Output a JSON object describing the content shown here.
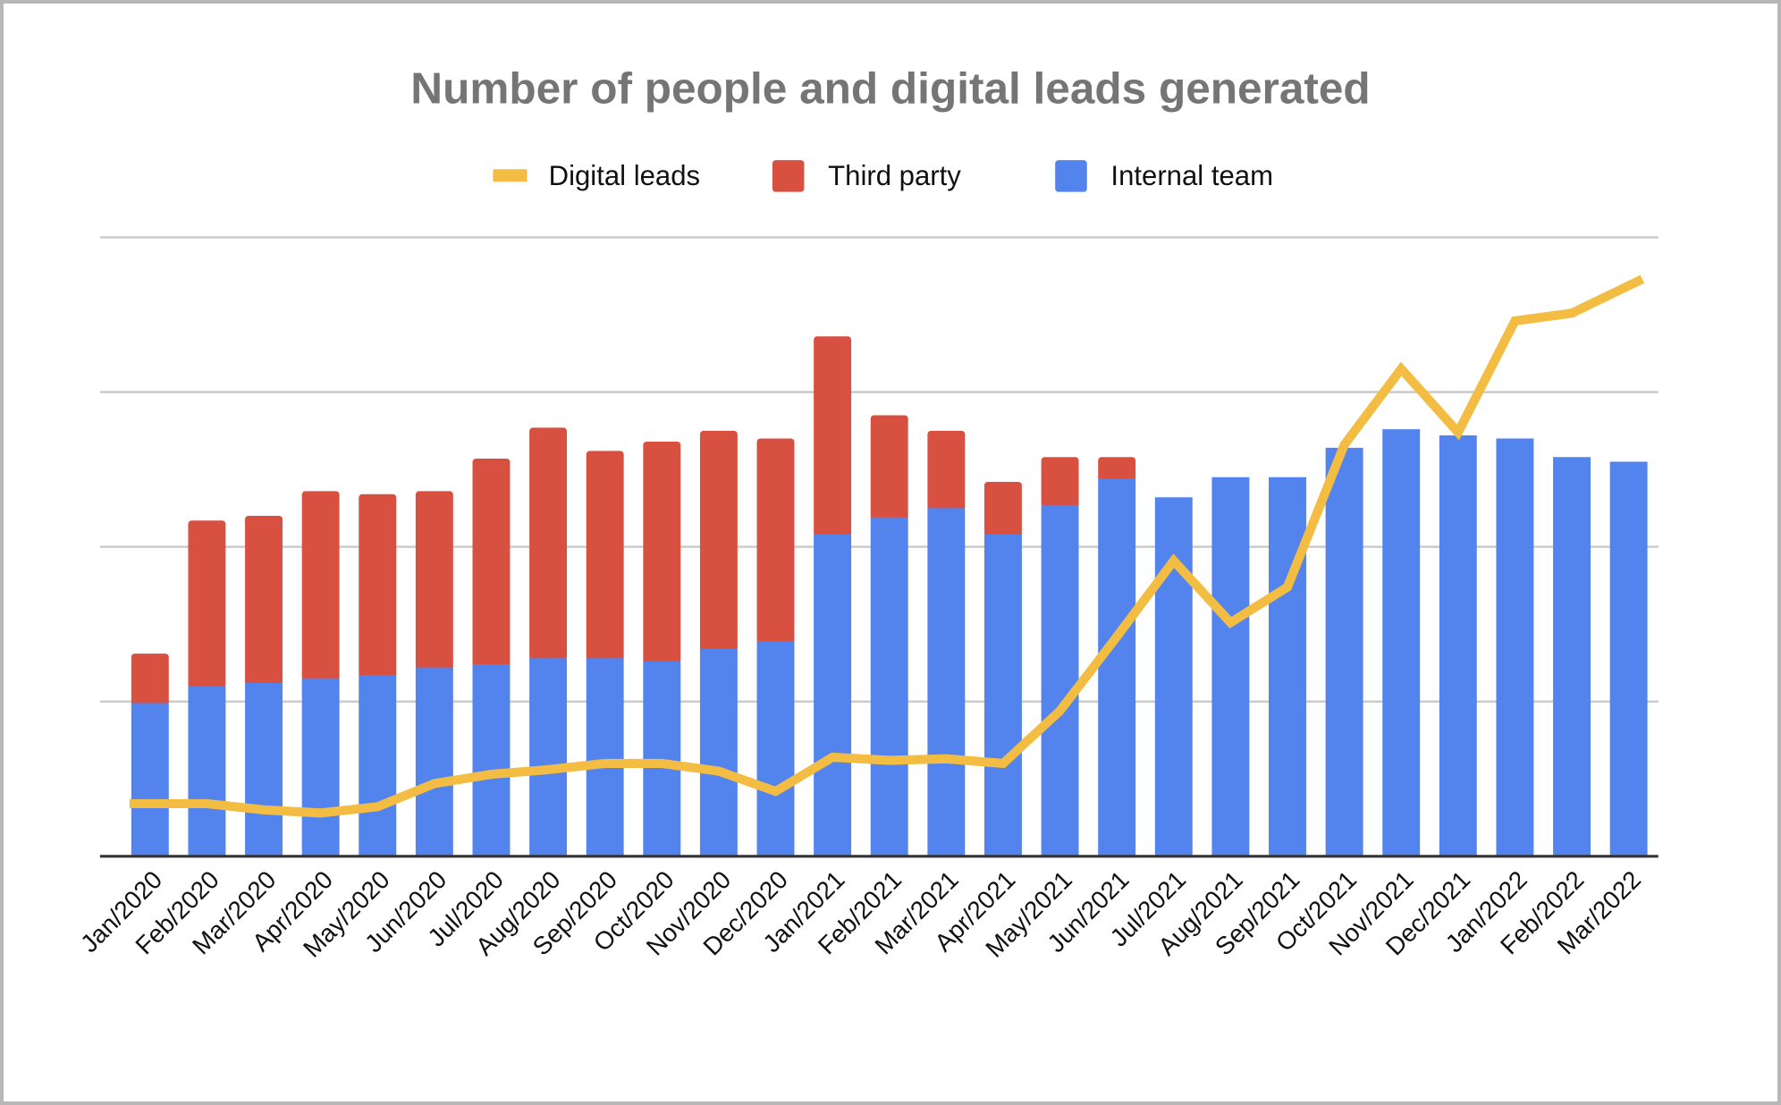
{
  "chart_data": {
    "type": "bar",
    "stacked": true,
    "title": "Number of people and digital leads generated",
    "xlabel": "",
    "ylabel": "",
    "ylim": [
      0,
      40
    ],
    "gridlines": [
      10,
      20,
      30,
      40
    ],
    "y_tick_labels_visible": false,
    "grid": true,
    "legend_position": "top",
    "categories": [
      "Jan/2020",
      "Feb/2020",
      "Mar/2020",
      "Apr/2020",
      "May/2020",
      "Jun/2020",
      "Jul/2020",
      "Aug/2020",
      "Sep/2020",
      "Oct/2020",
      "Nov/2020",
      "Dec/2020",
      "Jan/2021",
      "Feb/2021",
      "Mar/2021",
      "Apr/2021",
      "May/2021",
      "Jun/2021",
      "Jul/2021",
      "Aug/2021",
      "Sep/2021",
      "Oct/2021",
      "Nov/2021",
      "Dec/2021",
      "Jan/2022",
      "Feb/2022",
      "Mar/2022"
    ],
    "series": [
      {
        "name": "Internal team",
        "kind": "bar",
        "color": "#5383EC",
        "values": [
          9.9,
          11.0,
          11.2,
          11.5,
          11.7,
          12.2,
          12.4,
          12.8,
          12.8,
          12.6,
          13.4,
          13.9,
          20.8,
          21.9,
          22.5,
          20.8,
          22.7,
          24.4,
          23.2,
          24.5,
          24.5,
          26.4,
          27.6,
          27.2,
          27.0,
          25.8,
          25.5
        ]
      },
      {
        "name": "Third party",
        "kind": "bar",
        "color": "#D85040",
        "values": [
          3.2,
          10.7,
          10.8,
          12.1,
          11.7,
          11.4,
          13.3,
          14.9,
          13.4,
          14.2,
          14.1,
          13.1,
          12.8,
          6.6,
          5.0,
          3.4,
          3.1,
          1.4,
          0,
          0,
          0,
          0,
          0,
          0,
          0,
          0,
          0
        ]
      },
      {
        "name": "Digital leads",
        "kind": "line",
        "color": "#F2BD42",
        "values": [
          3.4,
          3.4,
          3.0,
          2.8,
          3.2,
          4.7,
          5.3,
          5.6,
          6.0,
          6.0,
          5.5,
          4.2,
          6.4,
          6.2,
          6.3,
          6.0,
          9.4,
          14.2,
          19.1,
          15.1,
          17.4,
          26.6,
          31.5,
          27.4,
          34.6,
          35.1,
          37.3
        ]
      }
    ],
    "legend": [
      {
        "label": "Digital leads",
        "color": "#F2BD42",
        "shape": "line"
      },
      {
        "label": "Third party",
        "color": "#D85040",
        "shape": "square"
      },
      {
        "label": "Internal team",
        "color": "#5383EC",
        "shape": "square"
      }
    ]
  }
}
